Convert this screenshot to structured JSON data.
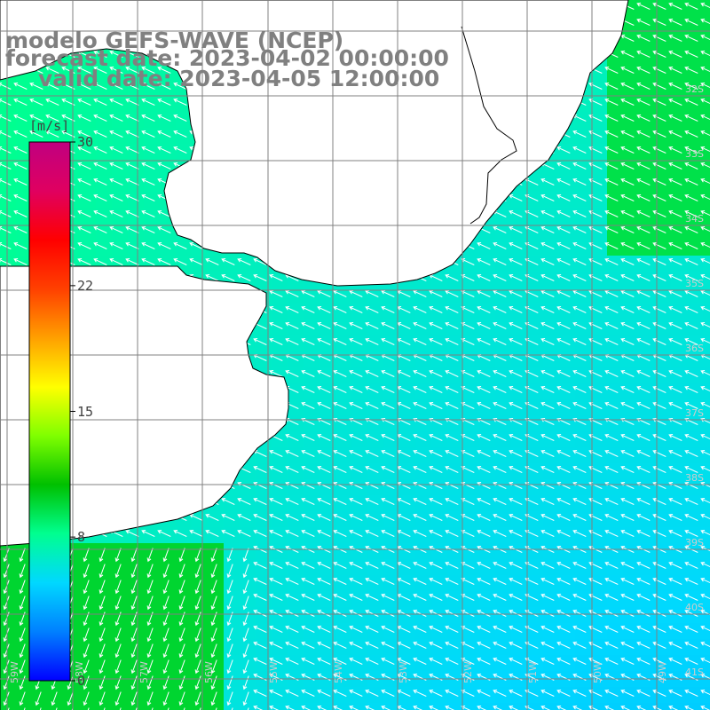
{
  "titles": {
    "model": "modelo GEFS-WAVE (NCEP)",
    "forecast": "forecast date: 2023-04-02 00:00:00",
    "valid": "valid date: 2023-04-05 12:00:00"
  },
  "legend": {
    "unit": "[m/s]",
    "min": 0,
    "max": 30,
    "ticks": [
      "30",
      "22",
      "15",
      "8",
      "0"
    ],
    "tick_values": [
      30,
      22,
      15,
      8,
      0
    ],
    "colors": [
      "#0000ff",
      "#0080ff",
      "#00d8ff",
      "#00ff90",
      "#00c000",
      "#80ff00",
      "#ffff00",
      "#ffa000",
      "#ff4000",
      "#ff0000",
      "#e00060",
      "#c00080"
    ]
  },
  "map": {
    "lat_labels": [
      "32S",
      "33S",
      "34S",
      "35S",
      "36S",
      "37S",
      "38S",
      "39S",
      "40S",
      "41S"
    ],
    "lon_labels": [
      "59W",
      "58W",
      "57W",
      "56W",
      "55W",
      "54W",
      "53W",
      "52W",
      "51W",
      "50W",
      "49W"
    ],
    "wind": {
      "direction": "from south-east (arrows pointing north-west); south-west corner pointing south-west",
      "min_speed_ms": 4,
      "max_speed_ms": 10
    },
    "colors": {
      "land": "#ffffff",
      "coast": "#000000",
      "grid": "#808080",
      "arrow": "#ffffff"
    }
  }
}
